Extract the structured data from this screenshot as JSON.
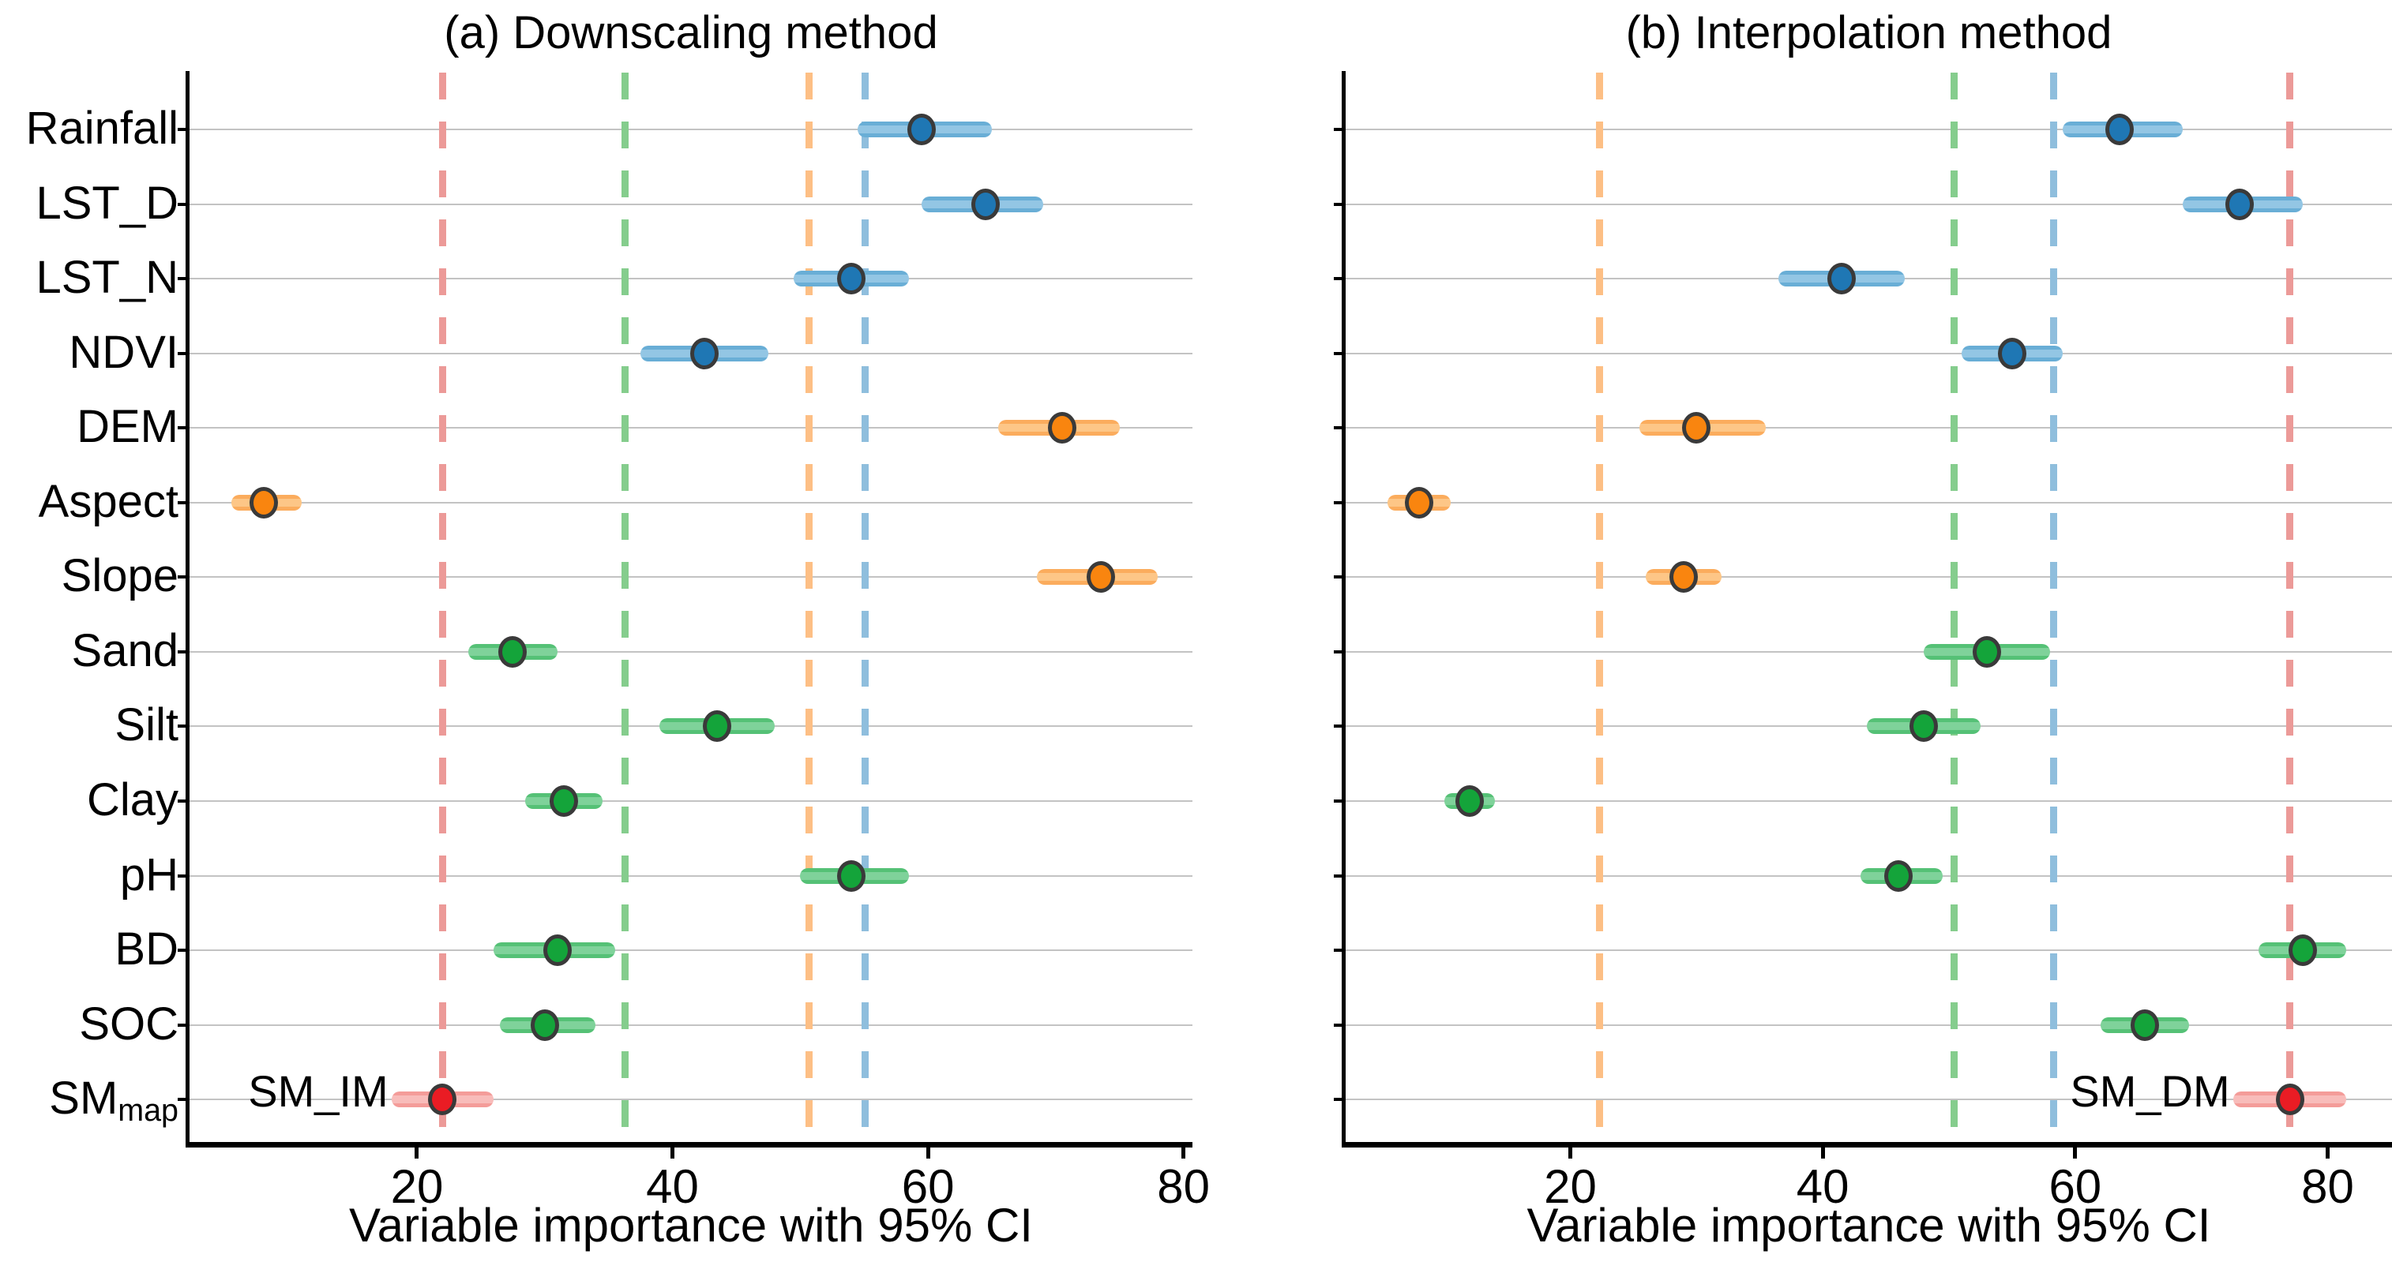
{
  "figure": {
    "background": "#ffffff",
    "grid_color": "#c3c3c3",
    "axis_color": "#000000",
    "point_edge_color": "#3a3a3a",
    "y_labels": [
      {
        "text": "Rainfall",
        "sub": ""
      },
      {
        "text": "LST_D",
        "sub": ""
      },
      {
        "text": "LST_N",
        "sub": ""
      },
      {
        "text": "NDVI",
        "sub": ""
      },
      {
        "text": "DEM",
        "sub": ""
      },
      {
        "text": "Aspect",
        "sub": ""
      },
      {
        "text": "Slope",
        "sub": ""
      },
      {
        "text": "Sand",
        "sub": ""
      },
      {
        "text": "Silt",
        "sub": ""
      },
      {
        "text": "Clay",
        "sub": ""
      },
      {
        "text": "pH",
        "sub": ""
      },
      {
        "text": "BD",
        "sub": ""
      },
      {
        "text": "SOC",
        "sub": ""
      },
      {
        "text": "SM",
        "sub": "map"
      }
    ],
    "group_colors": {
      "climate_veg": {
        "point": "#1f77b4",
        "band": "#69aed6",
        "band_core": "#93c6e4",
        "dash": "#8fbedd"
      },
      "topography": {
        "point": "#f9850f",
        "band": "#fbac5d",
        "band_core": "#fdc687",
        "dash": "#fdbf85"
      },
      "soil": {
        "point": "#14a43a",
        "band": "#55c176",
        "band_core": "#7fd29a",
        "dash": "#85cd8d"
      },
      "sm_map": {
        "point": "#ea1c24",
        "band": "#f49c99",
        "band_core": "#f8bcba",
        "dash": "#ec9a98"
      }
    }
  },
  "chart_data": [
    {
      "type": "scatter",
      "title": "(a) Downscaling method",
      "xlabel": "Variable importance with 95% CI",
      "x_ticks": [
        20,
        40,
        60,
        80
      ],
      "x_domain": [
        2.2,
        80.7
      ],
      "grid": true,
      "categories": [
        "Rainfall",
        "LST_D",
        "LST_N",
        "NDVI",
        "DEM",
        "Aspect",
        "Slope",
        "Sand",
        "Silt",
        "Clay",
        "pH",
        "BD",
        "SOC",
        "SM_map"
      ],
      "series": [
        {
          "label": "Rainfall",
          "group": "climate_veg",
          "value": 59.5,
          "ci": [
            54.5,
            65.0
          ]
        },
        {
          "label": "LST_D",
          "group": "climate_veg",
          "value": 64.5,
          "ci": [
            59.5,
            69.0
          ]
        },
        {
          "label": "LST_N",
          "group": "climate_veg",
          "value": 54.0,
          "ci": [
            49.5,
            58.5
          ]
        },
        {
          "label": "NDVI",
          "group": "climate_veg",
          "value": 42.5,
          "ci": [
            37.5,
            47.5
          ]
        },
        {
          "label": "DEM",
          "group": "topography",
          "value": 70.5,
          "ci": [
            65.5,
            75.0
          ]
        },
        {
          "label": "Aspect",
          "group": "topography",
          "value": 8.0,
          "ci": [
            5.5,
            11.0
          ]
        },
        {
          "label": "Slope",
          "group": "topography",
          "value": 73.5,
          "ci": [
            68.5,
            78.0
          ]
        },
        {
          "label": "Sand",
          "group": "soil",
          "value": 27.5,
          "ci": [
            24.0,
            31.0
          ]
        },
        {
          "label": "Silt",
          "group": "soil",
          "value": 43.5,
          "ci": [
            39.0,
            48.0
          ]
        },
        {
          "label": "Clay",
          "group": "soil",
          "value": 31.5,
          "ci": [
            28.5,
            34.5
          ]
        },
        {
          "label": "pH",
          "group": "soil",
          "value": 54.0,
          "ci": [
            50.0,
            58.5
          ]
        },
        {
          "label": "BD",
          "group": "soil",
          "value": 31.0,
          "ci": [
            26.0,
            35.5
          ]
        },
        {
          "label": "SOC",
          "group": "soil",
          "value": 30.0,
          "ci": [
            26.5,
            34.0
          ]
        },
        {
          "label": "SM_map",
          "group": "sm_map",
          "value": 22.0,
          "ci": [
            18.0,
            26.0
          ]
        }
      ],
      "group_mean_vlines": [
        {
          "group": "sm_map",
          "value": 22.0
        },
        {
          "group": "soil",
          "value": 36.3
        },
        {
          "group": "topography",
          "value": 50.7
        },
        {
          "group": "climate_veg",
          "value": 55.1
        }
      ],
      "annotation": {
        "text": "SM_IM",
        "category": "SM_map"
      }
    },
    {
      "type": "scatter",
      "title": "(b) Interpolation method",
      "xlabel": "Variable importance with 95% CI",
      "x_ticks": [
        20,
        40,
        60,
        80
      ],
      "x_domain": [
        2.2,
        85.1
      ],
      "grid": true,
      "categories": [
        "Rainfall",
        "LST_D",
        "LST_N",
        "NDVI",
        "DEM",
        "Aspect",
        "Slope",
        "Sand",
        "Silt",
        "Clay",
        "pH",
        "BD",
        "SOC",
        "SM_map"
      ],
      "series": [
        {
          "label": "Rainfall",
          "group": "climate_veg",
          "value": 63.5,
          "ci": [
            59.0,
            68.5
          ]
        },
        {
          "label": "LST_D",
          "group": "climate_veg",
          "value": 73.0,
          "ci": [
            68.5,
            78.0
          ]
        },
        {
          "label": "LST_N",
          "group": "climate_veg",
          "value": 41.5,
          "ci": [
            36.5,
            46.5
          ]
        },
        {
          "label": "NDVI",
          "group": "climate_veg",
          "value": 55.0,
          "ci": [
            51.0,
            59.0
          ]
        },
        {
          "label": "DEM",
          "group": "topography",
          "value": 30.0,
          "ci": [
            25.5,
            35.5
          ]
        },
        {
          "label": "Aspect",
          "group": "topography",
          "value": 8.0,
          "ci": [
            5.5,
            10.5
          ]
        },
        {
          "label": "Slope",
          "group": "topography",
          "value": 29.0,
          "ci": [
            26.0,
            32.0
          ]
        },
        {
          "label": "Sand",
          "group": "soil",
          "value": 53.0,
          "ci": [
            48.0,
            58.0
          ]
        },
        {
          "label": "Silt",
          "group": "soil",
          "value": 48.0,
          "ci": [
            43.5,
            52.5
          ]
        },
        {
          "label": "Clay",
          "group": "soil",
          "value": 12.0,
          "ci": [
            10.0,
            14.0
          ]
        },
        {
          "label": "pH",
          "group": "soil",
          "value": 46.0,
          "ci": [
            43.0,
            49.5
          ]
        },
        {
          "label": "BD",
          "group": "soil",
          "value": 78.0,
          "ci": [
            74.5,
            81.5
          ]
        },
        {
          "label": "SOC",
          "group": "soil",
          "value": 65.5,
          "ci": [
            62.0,
            69.0
          ]
        },
        {
          "label": "SM_map",
          "group": "sm_map",
          "value": 77.0,
          "ci": [
            72.5,
            81.5
          ]
        }
      ],
      "group_mean_vlines": [
        {
          "group": "topography",
          "value": 22.3
        },
        {
          "group": "soil",
          "value": 50.4
        },
        {
          "group": "climate_veg",
          "value": 58.3
        },
        {
          "group": "sm_map",
          "value": 77.0
        }
      ],
      "annotation": {
        "text": "SM_DM",
        "category": "SM_map"
      }
    }
  ]
}
